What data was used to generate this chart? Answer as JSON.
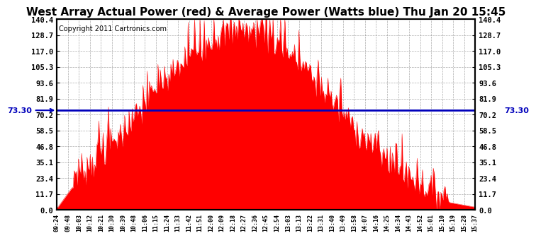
{
  "title": "West Array Actual Power (red) & Average Power (Watts blue) Thu Jan 20 15:45",
  "copyright": "Copyright 2011 Cartronics.com",
  "avg_power": 73.3,
  "ymin": 0.0,
  "ymax": 140.4,
  "yticks": [
    0.0,
    11.7,
    23.4,
    35.1,
    46.8,
    58.5,
    70.2,
    81.9,
    93.6,
    105.3,
    117.0,
    128.7,
    140.4
  ],
  "ytick_labels": [
    "0.0",
    "11.7",
    "23.4",
    "35.1",
    "46.8",
    "58.5",
    "70.2",
    "81.9",
    "93.6",
    "105.3",
    "117.0",
    "128.7",
    "140.4"
  ],
  "bar_color": "#FF0000",
  "line_color": "#0000BB",
  "bg_color": "#FFFFFF",
  "grid_color": "#888888",
  "title_fontsize": 11,
  "copyright_fontsize": 7,
  "x_times": [
    "09:24",
    "09:48",
    "10:03",
    "10:12",
    "10:21",
    "10:30",
    "10:39",
    "10:48",
    "11:06",
    "11:15",
    "11:24",
    "11:33",
    "11:42",
    "11:51",
    "12:00",
    "12:09",
    "12:18",
    "12:27",
    "12:36",
    "12:45",
    "12:54",
    "13:03",
    "13:13",
    "13:22",
    "13:31",
    "13:40",
    "13:49",
    "13:58",
    "14:07",
    "14:16",
    "14:25",
    "14:34",
    "14:43",
    "14:52",
    "15:01",
    "15:10",
    "15:19",
    "15:28",
    "15:37"
  ]
}
